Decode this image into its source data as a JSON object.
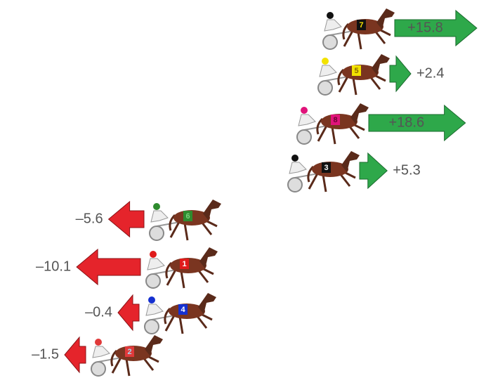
{
  "chart_data": {
    "type": "arrow",
    "categories": [
      "7",
      "5",
      "8",
      "3",
      "6",
      "1",
      "4",
      "2"
    ],
    "values": [
      15.8,
      2.4,
      18.6,
      5.3,
      -5.6,
      -10.1,
      -0.4,
      -1.5
    ],
    "value_labels": [
      "+15.8",
      "+2.4",
      "+18.6",
      "+5.3",
      "–5.6",
      "–10.1",
      "–0.4",
      "–1.5"
    ],
    "positive_color": "#2ea84a",
    "negative_color": "#e5242b",
    "badge_colors": [
      "#111111",
      "#f2e200",
      "#e0137a",
      "#111111",
      "#2e8b2e",
      "#e01b1b",
      "#1530d0",
      "#e03a3a"
    ],
    "badge_text_colors": [
      "#f5e000",
      "#8a6a00",
      "#6a0030",
      "#ffffff",
      "#7cd07c",
      "#ffffff",
      "#ffffff",
      "#a8d8f0"
    ]
  }
}
